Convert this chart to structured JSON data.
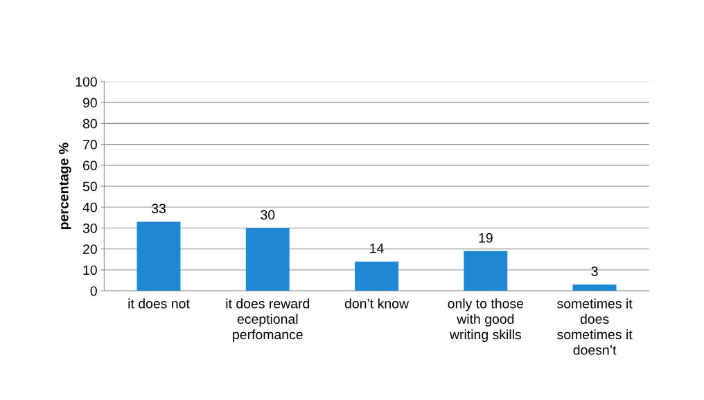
{
  "chart_data": {
    "type": "bar",
    "ylabel": "percentage %",
    "categories": [
      "it does not",
      "it does reward\neceptional\nperfomance",
      "don’t know",
      "only to those\nwith good\nwriting skills",
      "sometimes it\ndoes\nsometimes it\ndoesn’t"
    ],
    "values": [
      33,
      30,
      14,
      19,
      3
    ],
    "color": "#1f88d4",
    "ylim": [
      0,
      100
    ],
    "yticks": [
      0,
      10,
      20,
      30,
      40,
      50,
      60,
      70,
      80,
      90,
      100
    ],
    "grid": "y",
    "data_labels": true
  }
}
